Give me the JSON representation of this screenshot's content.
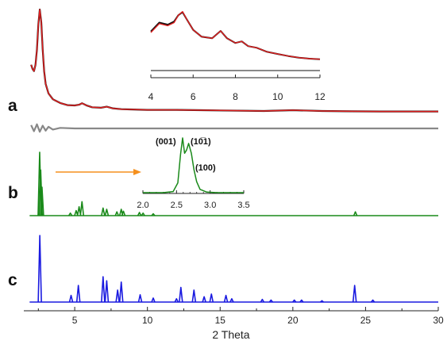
{
  "chart_data": [
    {
      "panel": "a",
      "type": "line",
      "xlim": [
        1.5,
        30
      ],
      "series": [
        {
          "color": "#111111",
          "x": [
            2.0,
            2.1,
            2.2,
            2.3,
            2.4,
            2.5,
            2.6,
            2.7,
            2.8,
            2.9,
            3.0,
            3.2,
            3.5,
            4.0,
            4.5,
            5.0,
            5.3,
            5.5,
            5.8,
            6.2,
            6.8,
            7.2,
            7.6,
            8.2,
            8.8,
            10,
            12,
            15,
            18,
            20,
            22,
            24,
            26,
            28,
            30
          ],
          "y": [
            0.48,
            0.44,
            0.42,
            0.48,
            0.62,
            0.86,
            1.0,
            0.88,
            0.62,
            0.42,
            0.3,
            0.21,
            0.155,
            0.12,
            0.1,
            0.097,
            0.104,
            0.118,
            0.098,
            0.08,
            0.075,
            0.085,
            0.07,
            0.062,
            0.06,
            0.055,
            0.055,
            0.05,
            0.045,
            0.052,
            0.045,
            0.042,
            0.04,
            0.04,
            0.04
          ]
        },
        {
          "color": "#e02020",
          "x": [
            2.0,
            2.1,
            2.2,
            2.3,
            2.4,
            2.5,
            2.6,
            2.7,
            2.8,
            2.9,
            3.0,
            3.2,
            3.5,
            4.0,
            4.5,
            5.0,
            5.3,
            5.5,
            5.8,
            6.2,
            6.8,
            7.2,
            7.6,
            8.2,
            8.8,
            10,
            12,
            15,
            18,
            20,
            22,
            24,
            26,
            28,
            30
          ],
          "y": [
            0.48,
            0.44,
            0.42,
            0.48,
            0.62,
            0.86,
            1.0,
            0.88,
            0.62,
            0.42,
            0.3,
            0.21,
            0.155,
            0.12,
            0.1,
            0.097,
            0.104,
            0.118,
            0.098,
            0.08,
            0.075,
            0.085,
            0.07,
            0.062,
            0.06,
            0.055,
            0.055,
            0.05,
            0.045,
            0.052,
            0.045,
            0.042,
            0.04,
            0.04,
            0.04
          ]
        },
        {
          "color": "#888888",
          "x": [
            2.0,
            2.2,
            2.4,
            2.6,
            2.8,
            3.0,
            3.2,
            3.5,
            4.0,
            5,
            8,
            12,
            16,
            20,
            24,
            30
          ],
          "y": [
            0.012,
            -0.01,
            0.015,
            -0.012,
            0.01,
            -0.008,
            0.006,
            -0.004,
            0.002,
            0,
            0,
            0,
            0,
            0,
            0,
            0
          ]
        }
      ],
      "inset": {
        "xticks": [
          "4",
          "6",
          "8",
          "10",
          "12"
        ],
        "xlim": [
          4,
          12
        ],
        "series": [
          {
            "color": "#111111",
            "x": [
              4.0,
              4.4,
              4.8,
              5.1,
              5.3,
              5.5,
              5.7,
              6.0,
              6.4,
              6.9,
              7.3,
              7.6,
              8.0,
              8.3,
              8.6,
              9.0,
              9.5,
              10,
              10.5,
              11,
              11.5,
              12
            ],
            "y": [
              0.55,
              0.72,
              0.68,
              0.74,
              0.86,
              0.92,
              0.78,
              0.58,
              0.45,
              0.42,
              0.56,
              0.42,
              0.33,
              0.36,
              0.27,
              0.24,
              0.16,
              0.12,
              0.08,
              0.05,
              0.03,
              0.02
            ]
          },
          {
            "color": "#e02020",
            "x": [
              4.0,
              4.4,
              4.8,
              5.1,
              5.3,
              5.5,
              5.7,
              6.0,
              6.4,
              6.9,
              7.3,
              7.6,
              8.0,
              8.3,
              8.6,
              9.0,
              9.5,
              10,
              10.5,
              11,
              11.5,
              12
            ],
            "y": [
              0.53,
              0.7,
              0.66,
              0.72,
              0.86,
              0.93,
              0.78,
              0.58,
              0.45,
              0.42,
              0.56,
              0.42,
              0.33,
              0.36,
              0.27,
              0.24,
              0.16,
              0.12,
              0.08,
              0.05,
              0.03,
              0.02
            ]
          },
          {
            "color": "#888888",
            "x": [
              4,
              12
            ],
            "y": [
              0,
              0
            ]
          }
        ]
      }
    },
    {
      "panel": "b",
      "type": "line",
      "xlim": [
        1.5,
        30
      ],
      "color": "#1a8a1a",
      "peaks": [
        {
          "x": 2.59,
          "h": 1.0
        },
        {
          "x": 2.66,
          "h": 0.72
        },
        {
          "x": 2.75,
          "h": 0.45
        },
        {
          "x": 4.7,
          "h": 0.04
        },
        {
          "x": 5.1,
          "h": 0.08
        },
        {
          "x": 5.3,
          "h": 0.14
        },
        {
          "x": 5.5,
          "h": 0.22
        },
        {
          "x": 6.95,
          "h": 0.12
        },
        {
          "x": 7.2,
          "h": 0.1
        },
        {
          "x": 7.9,
          "h": 0.06
        },
        {
          "x": 8.2,
          "h": 0.1
        },
        {
          "x": 8.35,
          "h": 0.07
        },
        {
          "x": 9.45,
          "h": 0.05
        },
        {
          "x": 9.7,
          "h": 0.04
        },
        {
          "x": 10.4,
          "h": 0.03
        },
        {
          "x": 24.3,
          "h": 0.06
        }
      ],
      "inset": {
        "xticks": [
          "2.0",
          "2.5",
          "3.0",
          "3.5"
        ],
        "xlim": [
          2.0,
          3.5
        ],
        "annotations": [
          "(001)",
          "(10̅1)",
          "(100)"
        ]
      }
    },
    {
      "panel": "c",
      "type": "line",
      "xlim": [
        1.5,
        30
      ],
      "color": "#1a1ae0",
      "peaks": [
        {
          "x": 2.6,
          "h": 1.0
        },
        {
          "x": 4.75,
          "h": 0.1
        },
        {
          "x": 5.25,
          "h": 0.25
        },
        {
          "x": 6.95,
          "h": 0.38
        },
        {
          "x": 7.2,
          "h": 0.32
        },
        {
          "x": 7.95,
          "h": 0.18
        },
        {
          "x": 8.2,
          "h": 0.3
        },
        {
          "x": 9.5,
          "h": 0.11
        },
        {
          "x": 10.4,
          "h": 0.06
        },
        {
          "x": 12.0,
          "h": 0.05
        },
        {
          "x": 12.3,
          "h": 0.22
        },
        {
          "x": 13.2,
          "h": 0.18
        },
        {
          "x": 13.9,
          "h": 0.08
        },
        {
          "x": 14.4,
          "h": 0.12
        },
        {
          "x": 15.4,
          "h": 0.1
        },
        {
          "x": 15.8,
          "h": 0.05
        },
        {
          "x": 17.9,
          "h": 0.04
        },
        {
          "x": 18.5,
          "h": 0.03
        },
        {
          "x": 20.1,
          "h": 0.03
        },
        {
          "x": 20.6,
          "h": 0.03
        },
        {
          "x": 22.0,
          "h": 0.02
        },
        {
          "x": 24.25,
          "h": 0.25
        },
        {
          "x": 25.5,
          "h": 0.03
        }
      ]
    }
  ],
  "axis": {
    "xlabel": "2 Theta",
    "xticks": [
      "5",
      "10",
      "15",
      "20",
      "25",
      "30"
    ],
    "xlim": [
      1.5,
      30
    ]
  },
  "panel_labels": [
    "a",
    "b",
    "c"
  ]
}
